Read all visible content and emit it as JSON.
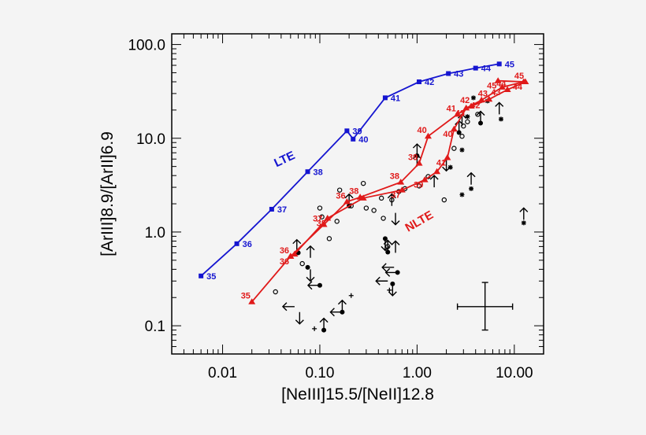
{
  "chart_data": {
    "type": "scatter",
    "title": "",
    "xlabel": "[NeIII]15.5/[NeII]12.8",
    "ylabel": "[ArIII]8.9/[ArII]6.9",
    "xscale": "log",
    "yscale": "log",
    "xlim": [
      0.003,
      20
    ],
    "ylim": [
      0.05,
      130
    ],
    "grid": false,
    "x_tick_labels": [
      "0.01",
      "0.10",
      "1.00",
      "10.00"
    ],
    "x_tick_values": [
      0.01,
      0.1,
      1,
      10
    ],
    "y_tick_labels": [
      "0.1",
      "1.0",
      "10.0",
      "100.0"
    ],
    "y_tick_values": [
      0.1,
      1,
      10,
      100
    ],
    "series": [
      {
        "name": "LTE",
        "color": "#1515d0",
        "marker": "square",
        "points": [
          {
            "x": 0.006,
            "y": 0.34,
            "label": "35"
          },
          {
            "x": 0.014,
            "y": 0.75,
            "label": "36"
          },
          {
            "x": 0.032,
            "y": 1.75,
            "label": "37"
          },
          {
            "x": 0.075,
            "y": 4.4,
            "label": "38"
          },
          {
            "x": 0.19,
            "y": 12.0,
            "label": "39"
          },
          {
            "x": 0.22,
            "y": 9.8,
            "label": "40"
          },
          {
            "x": 0.47,
            "y": 27,
            "label": "41"
          },
          {
            "x": 1.05,
            "y": 40,
            "label": "42"
          },
          {
            "x": 2.1,
            "y": 49,
            "label": "43"
          },
          {
            "x": 4.0,
            "y": 56,
            "label": "44"
          },
          {
            "x": 7.0,
            "y": 62,
            "label": "45"
          }
        ]
      },
      {
        "name": "NLTE",
        "color": "#e01a1a",
        "marker": "triangle",
        "points": [
          {
            "x": 0.02,
            "y": 0.18,
            "label": "35"
          },
          {
            "x": 0.05,
            "y": 0.55,
            "label": "36"
          },
          {
            "x": 0.11,
            "y": 1.2,
            "label": "37"
          },
          {
            "x": 0.19,
            "y": 2.1,
            "label": "36"
          },
          {
            "x": 0.26,
            "y": 2.35,
            "label": "38"
          },
          {
            "x": 0.68,
            "y": 3.4,
            "label": "38"
          },
          {
            "x": 1.05,
            "y": 5.4,
            "label": "39"
          },
          {
            "x": 1.3,
            "y": 10.5,
            "label": "40"
          },
          {
            "x": 2.6,
            "y": 18,
            "label": "41"
          },
          {
            "x": 3.6,
            "y": 22,
            "label": "42"
          },
          {
            "x": 5.5,
            "y": 26,
            "label": "43"
          },
          {
            "x": 8.5,
            "y": 33,
            "label": "44"
          },
          {
            "x": 13,
            "y": 40,
            "label": "45"
          }
        ],
        "branch": [
          {
            "x": 0.05,
            "y": 0.55,
            "label": "36"
          },
          {
            "x": 0.055,
            "y": 0.58,
            "label": ""
          },
          {
            "x": 0.12,
            "y": 1.4,
            "label": "35"
          },
          {
            "x": 0.28,
            "y": 2.3,
            "label": ""
          },
          {
            "x": 0.7,
            "y": 2.8,
            "label": "37"
          },
          {
            "x": 1.2,
            "y": 3.6,
            "label": "39"
          },
          {
            "x": 1.6,
            "y": 4.4,
            "label": ""
          },
          {
            "x": 2.05,
            "y": 6.2,
            "label": "41"
          },
          {
            "x": 2.4,
            "y": 12.5,
            "label": "40"
          },
          {
            "x": 3.2,
            "y": 21,
            "label": "43"
          },
          {
            "x": 4.6,
            "y": 25.5,
            "label": "42"
          },
          {
            "x": 7.5,
            "y": 35,
            "label": "43"
          },
          {
            "x": 12.5,
            "y": 40,
            "label": "44"
          },
          {
            "x": 6.8,
            "y": 41,
            "label": "45"
          }
        ]
      }
    ],
    "observations": [
      {
        "x": 0.035,
        "y": 0.23,
        "kind": "open"
      },
      {
        "x": 0.066,
        "y": 0.46,
        "kind": "open"
      },
      {
        "x": 0.105,
        "y": 1.45,
        "kind": "open"
      },
      {
        "x": 0.1,
        "y": 1.8,
        "kind": "open"
      },
      {
        "x": 0.125,
        "y": 0.85,
        "kind": "open"
      },
      {
        "x": 0.15,
        "y": 1.3,
        "kind": "open"
      },
      {
        "x": 0.16,
        "y": 2.8,
        "kind": "open"
      },
      {
        "x": 0.21,
        "y": 1.9,
        "kind": "open"
      },
      {
        "x": 0.28,
        "y": 3.3,
        "kind": "open"
      },
      {
        "x": 0.3,
        "y": 1.8,
        "kind": "open"
      },
      {
        "x": 0.36,
        "y": 1.7,
        "kind": "open"
      },
      {
        "x": 0.43,
        "y": 2.3,
        "kind": "open"
      },
      {
        "x": 0.45,
        "y": 1.4,
        "kind": "open"
      },
      {
        "x": 0.5,
        "y": 0.7,
        "kind": "open"
      },
      {
        "x": 0.55,
        "y": 2.2,
        "kind": "open"
      },
      {
        "x": 0.65,
        "y": 2.7,
        "kind": "open"
      },
      {
        "x": 0.75,
        "y": 2.9,
        "kind": "open"
      },
      {
        "x": 1.05,
        "y": 3.1,
        "kind": "open"
      },
      {
        "x": 1.3,
        "y": 3.9,
        "kind": "open"
      },
      {
        "x": 1.9,
        "y": 2.2,
        "kind": "open"
      },
      {
        "x": 2.4,
        "y": 7.8,
        "kind": "open"
      },
      {
        "x": 2.9,
        "y": 10.5,
        "kind": "open"
      },
      {
        "x": 3.0,
        "y": 13.5,
        "kind": "open"
      },
      {
        "x": 3.3,
        "y": 15.0,
        "kind": "open"
      },
      {
        "x": 4.2,
        "y": 18.0,
        "kind": "open"
      },
      {
        "x": 0.06,
        "y": 0.6,
        "kind": "filled"
      },
      {
        "x": 0.075,
        "y": 0.42,
        "kind": "filled"
      },
      {
        "x": 0.1,
        "y": 0.27,
        "kind": "filled"
      },
      {
        "x": 0.11,
        "y": 0.09,
        "kind": "filled"
      },
      {
        "x": 0.17,
        "y": 0.14,
        "kind": "filled"
      },
      {
        "x": 0.2,
        "y": 1.9,
        "kind": "filled"
      },
      {
        "x": 0.47,
        "y": 0.85,
        "kind": "filled"
      },
      {
        "x": 0.5,
        "y": 0.61,
        "kind": "filled"
      },
      {
        "x": 0.56,
        "y": 0.28,
        "kind": "filled"
      },
      {
        "x": 0.63,
        "y": 0.37,
        "kind": "filled"
      },
      {
        "x": 1.0,
        "y": 6.5,
        "kind": "filled"
      },
      {
        "x": 2.7,
        "y": 11.5,
        "kind": "filled"
      },
      {
        "x": 4.5,
        "y": 14.5,
        "kind": "filled"
      },
      {
        "x": 0.088,
        "y": 0.093,
        "kind": "plus"
      },
      {
        "x": 0.21,
        "y": 0.21,
        "kind": "plus"
      },
      {
        "x": 0.52,
        "y": 0.24,
        "kind": "plus"
      },
      {
        "x": 2.2,
        "y": 4.9,
        "kind": "star"
      },
      {
        "x": 2.9,
        "y": 7.5,
        "kind": "star"
      },
      {
        "x": 2.9,
        "y": 2.5,
        "kind": "star"
      },
      {
        "x": 3.3,
        "y": 17.0,
        "kind": "star"
      },
      {
        "x": 3.8,
        "y": 27.0,
        "kind": "star"
      },
      {
        "x": 5.3,
        "y": 25.0,
        "kind": "star"
      },
      {
        "x": 7.3,
        "y": 16.0,
        "kind": "star"
      },
      {
        "x": 3.6,
        "y": 2.9,
        "kind": "star"
      },
      {
        "x": 12.5,
        "y": 1.25,
        "kind": "star"
      }
    ],
    "limits": [
      {
        "x": 0.058,
        "y": 0.62,
        "dir": "up"
      },
      {
        "x": 0.08,
        "y": 0.53,
        "dir": "up"
      },
      {
        "x": 0.08,
        "y": 0.4,
        "dir": "down"
      },
      {
        "x": 0.055,
        "y": 0.16,
        "dir": "left"
      },
      {
        "x": 0.062,
        "y": 0.14,
        "dir": "down"
      },
      {
        "x": 0.1,
        "y": 0.27,
        "dir": "left"
      },
      {
        "x": 0.11,
        "y": 0.09,
        "dir": "up"
      },
      {
        "x": 0.17,
        "y": 0.14,
        "dir": "left"
      },
      {
        "x": 0.17,
        "y": 0.14,
        "dir": "up"
      },
      {
        "x": 0.2,
        "y": 1.9,
        "dir": "up"
      },
      {
        "x": 0.47,
        "y": 0.85,
        "dir": "down"
      },
      {
        "x": 0.55,
        "y": 1.9,
        "dir": "up"
      },
      {
        "x": 0.6,
        "y": 1.6,
        "dir": "down"
      },
      {
        "x": 0.5,
        "y": 0.61,
        "dir": "up"
      },
      {
        "x": 0.5,
        "y": 0.3,
        "dir": "left"
      },
      {
        "x": 0.56,
        "y": 0.28,
        "dir": "down"
      },
      {
        "x": 0.58,
        "y": 0.42,
        "dir": "left"
      },
      {
        "x": 0.6,
        "y": 0.6,
        "dir": "up"
      },
      {
        "x": 0.63,
        "y": 0.37,
        "dir": "left"
      },
      {
        "x": 1.0,
        "y": 6.5,
        "dir": "up"
      },
      {
        "x": 1.0,
        "y": 5.0,
        "dir": "up"
      },
      {
        "x": 2.0,
        "y": 6.0,
        "dir": "down"
      },
      {
        "x": 1.5,
        "y": 3.0,
        "dir": "up"
      },
      {
        "x": 2.7,
        "y": 11.5,
        "dir": "up"
      },
      {
        "x": 2.9,
        "y": 13.5,
        "dir": "up"
      },
      {
        "x": 4.5,
        "y": 14.5,
        "dir": "up"
      },
      {
        "x": 7.0,
        "y": 18.0,
        "dir": "up"
      },
      {
        "x": 3.6,
        "y": 3.2,
        "dir": "up"
      },
      {
        "x": 12.5,
        "y": 1.35,
        "dir": "up"
      }
    ],
    "error_bar": {
      "x": 5.0,
      "y": 0.16,
      "x_low": 2.6,
      "x_high": 9.6,
      "y_low": 0.09,
      "y_high": 0.29
    },
    "annotations": [
      {
        "text": "LTE",
        "x": 0.045,
        "y": 5.5,
        "color": "#1515d0",
        "rotate": -25
      },
      {
        "text": "NLTE",
        "x": 1.1,
        "y": 1.2,
        "color": "#e01a1a",
        "rotate": -30
      }
    ]
  }
}
